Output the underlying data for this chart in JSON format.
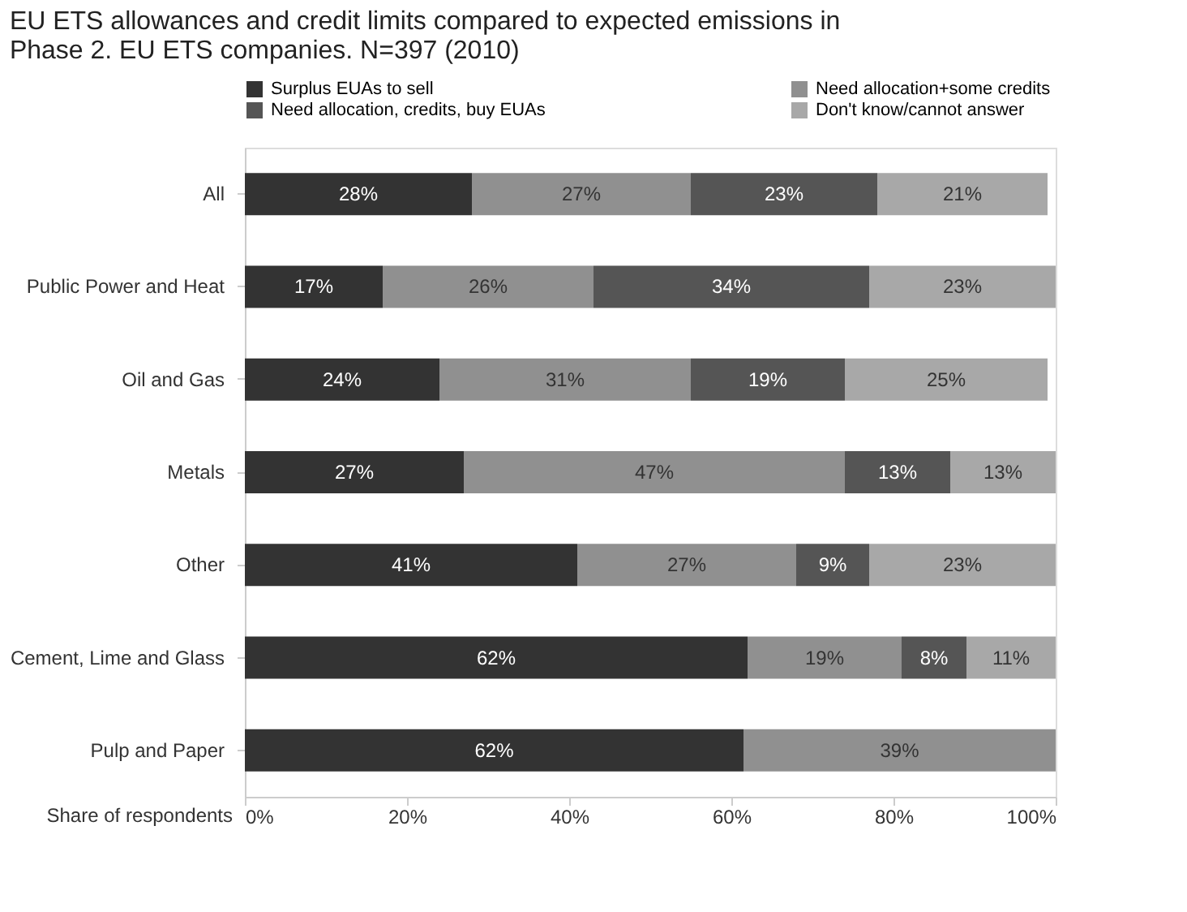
{
  "chart_data": {
    "type": "bar",
    "orientation": "horizontal",
    "stacked": true,
    "title": "EU ETS allowances and credit limits compared to expected emissions in Phase 2. EU ETS companies. N=397 (2010)",
    "xlabel": "Share of respondents",
    "categories": [
      "All",
      "Public Power and Heat",
      "Oil and Gas",
      "Metals",
      "Other",
      "Cement, Lime and Glass",
      "Pulp and Paper"
    ],
    "series": [
      {
        "name": "Surplus EUAs to sell",
        "color": "#333333",
        "values": [
          28,
          17,
          24,
          27,
          41,
          62,
          61.5
        ],
        "value_labels": [
          "28%",
          "17%",
          "24%",
          "27%",
          "41%",
          "62%",
          "62%"
        ]
      },
      {
        "name": "Need allocation+some credits",
        "color": "#909090",
        "values": [
          27,
          26,
          31,
          47,
          27,
          19,
          38.5
        ],
        "value_labels": [
          "27%",
          "26%",
          "31%",
          "47%",
          "27%",
          "19%",
          "39%"
        ]
      },
      {
        "name": "Need allocation, credits, buy EUAs",
        "color": "#555555",
        "values": [
          23,
          34,
          19,
          13,
          9,
          8,
          null
        ],
        "value_labels": [
          "23%",
          "34%",
          "19%",
          "13%",
          "9%",
          "8%",
          null
        ]
      },
      {
        "name": "Don't know/cannot answer",
        "color": "#a8a8a8",
        "values": [
          21,
          23,
          25,
          13,
          23,
          11,
          null
        ],
        "value_labels": [
          "21%",
          "23%",
          "25%",
          "13%",
          "23%",
          "11%",
          null
        ]
      }
    ],
    "xlim": [
      0,
      100
    ],
    "xticks": [
      {
        "value": 0,
        "label": "0%"
      },
      {
        "value": 20,
        "label": "20%"
      },
      {
        "value": 40,
        "label": "40%"
      },
      {
        "value": 60,
        "label": "60%"
      },
      {
        "value": 80,
        "label": "80%"
      },
      {
        "value": 100,
        "label": "100%"
      }
    ],
    "grid": false,
    "legend": "top"
  }
}
